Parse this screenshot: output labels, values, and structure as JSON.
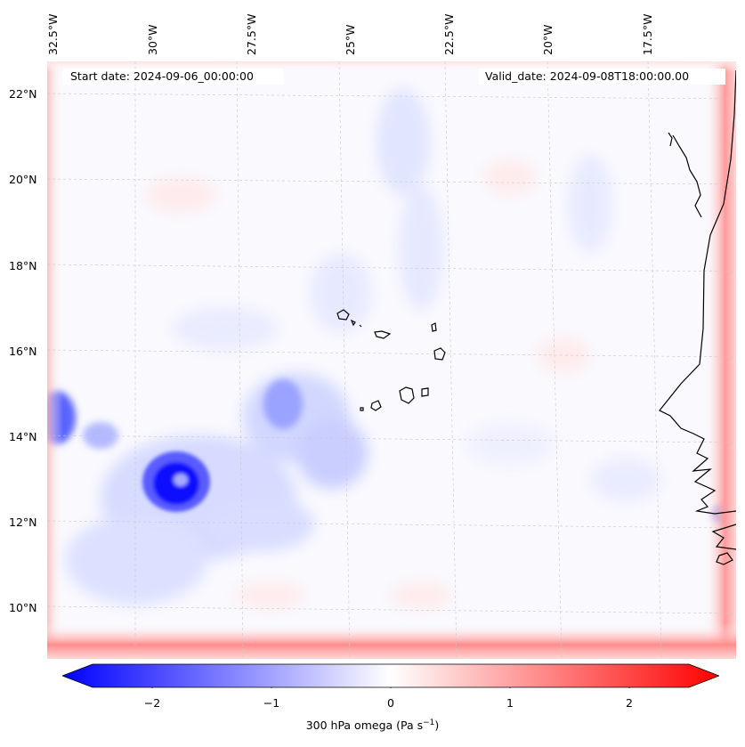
{
  "header": {
    "start_date": "Start date: 2024-09-06_00:00:00",
    "valid_date": "Valid_date: 2024-09-08T18:00:00.00"
  },
  "axes": {
    "longitude_labels": [
      "32.5°W",
      "30°W",
      "27.5°W",
      "25°W",
      "22.5°W",
      "20°W",
      "17.5°W"
    ],
    "latitude_labels": [
      "22°N",
      "20°N",
      "18°N",
      "16°N",
      "14°N",
      "12°N",
      "10°N"
    ]
  },
  "colorbar": {
    "ticks": [
      "−2",
      "−1",
      "0",
      "1",
      "2"
    ],
    "label_text": "300 hPa omega (Pa s",
    "label_exp": "−1",
    "label_close": ")",
    "min": -2.75,
    "max": 2.75,
    "negative_color": "#0000ff",
    "positive_color": "#ff0000",
    "neutral_color": "#ffffff"
  },
  "colors": {
    "coastline": "#000000",
    "gridline": "#c8c8c8"
  }
}
